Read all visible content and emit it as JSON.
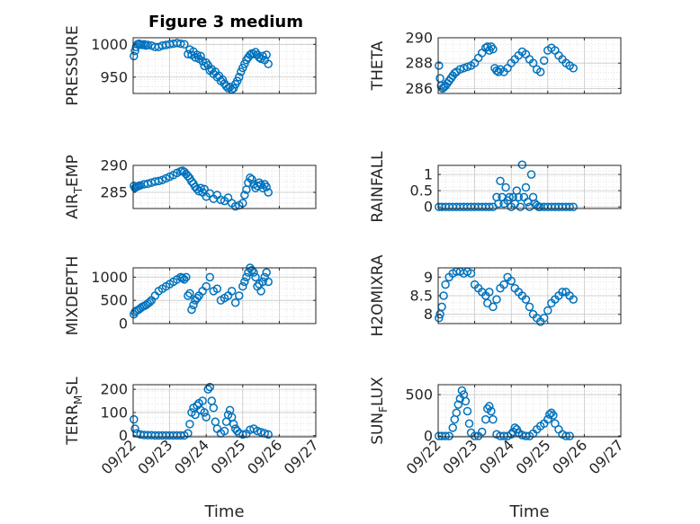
{
  "figure": {
    "title": "Figure 3 medium",
    "marker_color": "#0072bd",
    "axis_color": "#262626",
    "grid_color": "#c8c8c8",
    "x_tick_labels": [
      "09/22",
      "09/23",
      "09/24",
      "09/25",
      "09/26",
      "09/27"
    ],
    "x_label": "Time"
  },
  "chart_data": [
    {
      "type": "scatter",
      "ylabel": "PRESSURE",
      "ylim": [
        925,
        1010
      ],
      "yticks": [
        950,
        1000
      ],
      "xlim": [
        0,
        5
      ],
      "grid": true,
      "x": [
        0.02,
        0.05,
        0.08,
        0.12,
        0.16,
        0.2,
        0.25,
        0.3,
        0.35,
        0.4,
        0.5,
        0.6,
        0.7,
        0.8,
        0.9,
        1.0,
        1.1,
        1.2,
        1.3,
        1.4,
        1.5,
        1.55,
        1.6,
        1.65,
        1.7,
        1.75,
        1.8,
        1.85,
        1.9,
        1.95,
        2.0,
        2.05,
        2.1,
        2.15,
        2.2,
        2.25,
        2.3,
        2.35,
        2.4,
        2.45,
        2.5,
        2.55,
        2.6,
        2.65,
        2.7,
        2.75,
        2.8,
        2.85,
        2.9,
        2.95,
        3.0,
        3.05,
        3.1,
        3.15,
        3.2,
        3.25,
        3.3,
        3.35,
        3.4,
        3.45,
        3.5,
        3.55,
        3.6,
        3.65,
        3.7
      ],
      "y": [
        982,
        990,
        996,
        1000,
        1001,
        1000,
        999,
        1000,
        998,
        999,
        998,
        996,
        996,
        998,
        999,
        1000,
        1001,
        1002,
        1001,
        1000,
        985,
        992,
        984,
        989,
        980,
        984,
        978,
        982,
        974,
        967,
        972,
        968,
        960,
        962,
        955,
        958,
        950,
        952,
        944,
        946,
        940,
        936,
        933,
        935,
        931,
        933,
        939,
        944,
        950,
        958,
        964,
        970,
        976,
        980,
        984,
        986,
        985,
        988,
        984,
        980,
        978,
        982,
        976,
        984,
        970
      ]
    },
    {
      "type": "scatter",
      "ylabel": "THETA",
      "ylim": [
        285.6,
        290
      ],
      "yticks": [
        286,
        288,
        290
      ],
      "xlim": [
        0,
        5
      ],
      "grid": true,
      "x": [
        0.02,
        0.05,
        0.08,
        0.12,
        0.16,
        0.2,
        0.25,
        0.3,
        0.35,
        0.4,
        0.45,
        0.5,
        0.6,
        0.7,
        0.8,
        0.9,
        1.0,
        1.1,
        1.2,
        1.3,
        1.35,
        1.4,
        1.45,
        1.5,
        1.55,
        1.6,
        1.65,
        1.7,
        1.8,
        1.9,
        2.0,
        2.1,
        2.2,
        2.3,
        2.4,
        2.5,
        2.6,
        2.7,
        2.8,
        2.9,
        3.0,
        3.1,
        3.2,
        3.3,
        3.4,
        3.5,
        3.6,
        3.7
      ],
      "y": [
        287.8,
        286.8,
        286.2,
        286.0,
        286.1,
        286.2,
        286.4,
        286.6,
        286.8,
        287.0,
        287.2,
        287.3,
        287.5,
        287.6,
        287.7,
        287.8,
        288.0,
        288.4,
        288.8,
        289.2,
        289.3,
        289.0,
        289.3,
        289.1,
        287.6,
        287.4,
        287.3,
        287.5,
        287.3,
        287.6,
        288.0,
        288.3,
        288.6,
        288.9,
        288.7,
        288.3,
        288.0,
        287.5,
        287.3,
        288.2,
        289.0,
        289.2,
        289.0,
        288.6,
        288.3,
        288.0,
        287.8,
        287.6
      ]
    },
    {
      "type": "scatter",
      "ylabel": "AIR_TEMP",
      "ylabel_sub": "T",
      "ylim": [
        282,
        290
      ],
      "yticks": [
        285,
        290
      ],
      "xlim": [
        0,
        5
      ],
      "grid": true,
      "x": [
        0.02,
        0.05,
        0.08,
        0.12,
        0.16,
        0.2,
        0.3,
        0.4,
        0.5,
        0.6,
        0.7,
        0.8,
        0.9,
        1.0,
        1.1,
        1.2,
        1.3,
        1.35,
        1.4,
        1.45,
        1.5,
        1.55,
        1.6,
        1.65,
        1.7,
        1.75,
        1.8,
        1.85,
        1.9,
        1.95,
        2.0,
        2.1,
        2.2,
        2.3,
        2.4,
        2.5,
        2.6,
        2.7,
        2.8,
        2.9,
        3.0,
        3.05,
        3.1,
        3.15,
        3.2,
        3.25,
        3.3,
        3.35,
        3.4,
        3.45,
        3.5,
        3.55,
        3.6,
        3.65,
        3.7
      ],
      "y": [
        286.2,
        285.8,
        286.0,
        286.1,
        286.2,
        286.3,
        286.5,
        286.6,
        286.8,
        287.0,
        287.1,
        287.3,
        287.6,
        287.9,
        288.2,
        288.6,
        288.9,
        289.0,
        288.8,
        288.4,
        288.0,
        287.6,
        287.0,
        286.6,
        286.0,
        285.6,
        285.2,
        285.8,
        285.0,
        285.6,
        284.2,
        284.8,
        283.8,
        284.5,
        283.6,
        283.4,
        284.0,
        283.0,
        282.4,
        282.6,
        283.0,
        284.5,
        285.5,
        286.8,
        287.7,
        287.4,
        286.5,
        285.8,
        286.2,
        286.8,
        286.4,
        285.8,
        286.5,
        286.0,
        285.0
      ]
    },
    {
      "type": "scatter",
      "ylabel": "RAINFALL",
      "ylim": [
        -0.05,
        1.28
      ],
      "yticks": [
        0,
        0.5,
        1
      ],
      "xlim": [
        0,
        5
      ],
      "grid": true,
      "x": [
        0.02,
        0.1,
        0.2,
        0.3,
        0.4,
        0.5,
        0.6,
        0.7,
        0.8,
        0.9,
        1.0,
        1.1,
        1.2,
        1.3,
        1.4,
        1.5,
        1.6,
        1.65,
        1.7,
        1.75,
        1.8,
        1.85,
        1.9,
        1.95,
        2.0,
        2.05,
        2.1,
        2.15,
        2.2,
        2.25,
        2.3,
        2.35,
        2.4,
        2.45,
        2.5,
        2.55,
        2.6,
        2.65,
        2.7,
        2.75,
        2.8,
        2.9,
        3.0,
        3.1,
        3.2,
        3.3,
        3.4,
        3.5,
        3.6,
        3.7
      ],
      "y": [
        0,
        0,
        0,
        0,
        0,
        0,
        0,
        0,
        0,
        0,
        0,
        0,
        0,
        0,
        0,
        0,
        0.3,
        0.1,
        0.8,
        0.3,
        0.1,
        0.6,
        0.2,
        0.3,
        0,
        0.3,
        0.1,
        0.5,
        0.3,
        0,
        1.3,
        0.3,
        0.6,
        0.15,
        0,
        1.0,
        0.3,
        0.1,
        0.05,
        0,
        0,
        0,
        0,
        0,
        0,
        0,
        0,
        0,
        0,
        0
      ]
    },
    {
      "type": "scatter",
      "ylabel": "MIXDEPTH",
      "ylim": [
        0,
        1200
      ],
      "yticks": [
        0,
        500,
        1000
      ],
      "xlim": [
        0,
        5
      ],
      "grid": true,
      "x": [
        0.02,
        0.05,
        0.1,
        0.15,
        0.2,
        0.25,
        0.3,
        0.35,
        0.4,
        0.45,
        0.5,
        0.6,
        0.7,
        0.8,
        0.9,
        1.0,
        1.1,
        1.2,
        1.3,
        1.35,
        1.4,
        1.45,
        1.5,
        1.55,
        1.6,
        1.65,
        1.7,
        1.75,
        1.8,
        1.9,
        2.0,
        2.1,
        2.2,
        2.3,
        2.4,
        2.5,
        2.6,
        2.7,
        2.8,
        2.9,
        3.0,
        3.05,
        3.1,
        3.15,
        3.2,
        3.25,
        3.3,
        3.35,
        3.4,
        3.45,
        3.5,
        3.55,
        3.6,
        3.65,
        3.7
      ],
      "y": [
        200,
        250,
        280,
        300,
        330,
        360,
        380,
        400,
        430,
        460,
        500,
        600,
        700,
        750,
        800,
        850,
        900,
        950,
        1000,
        980,
        950,
        1000,
        600,
        650,
        300,
        400,
        500,
        550,
        600,
        700,
        800,
        1000,
        700,
        750,
        500,
        550,
        600,
        700,
        450,
        600,
        800,
        900,
        1000,
        1100,
        1200,
        1150,
        1100,
        1000,
        800,
        850,
        700,
        900,
        1000,
        1100,
        900
      ]
    },
    {
      "type": "scatter",
      "ylabel": "H2OMIXRA",
      "ylim": [
        7.75,
        9.25
      ],
      "yticks": [
        8,
        8.5,
        9
      ],
      "xlim": [
        0,
        5
      ],
      "grid": true,
      "x": [
        0.02,
        0.05,
        0.1,
        0.15,
        0.2,
        0.3,
        0.4,
        0.5,
        0.6,
        0.7,
        0.8,
        0.9,
        1.0,
        1.1,
        1.2,
        1.3,
        1.35,
        1.4,
        1.5,
        1.6,
        1.7,
        1.8,
        1.9,
        2.0,
        2.1,
        2.2,
        2.3,
        2.4,
        2.5,
        2.6,
        2.7,
        2.8,
        2.9,
        3.0,
        3.1,
        3.2,
        3.3,
        3.4,
        3.5,
        3.6,
        3.7
      ],
      "y": [
        7.9,
        8.0,
        8.2,
        8.5,
        8.8,
        9.0,
        9.1,
        9.15,
        9.15,
        9.1,
        9.15,
        9.1,
        8.8,
        8.7,
        8.6,
        8.5,
        8.3,
        8.6,
        8.2,
        8.4,
        8.7,
        8.8,
        9.0,
        8.9,
        8.7,
        8.6,
        8.5,
        8.4,
        8.2,
        8.0,
        7.9,
        7.8,
        7.9,
        8.1,
        8.3,
        8.4,
        8.5,
        8.6,
        8.6,
        8.5,
        8.4
      ]
    },
    {
      "type": "scatter",
      "ylabel": "TERR_MSL",
      "ylabel_sub": "M",
      "ylim": [
        -5,
        220
      ],
      "yticks": [
        0,
        100,
        200
      ],
      "xlim": [
        0,
        5
      ],
      "grid": true,
      "x": [
        0.02,
        0.05,
        0.1,
        0.2,
        0.3,
        0.4,
        0.5,
        0.6,
        0.7,
        0.8,
        0.9,
        1.0,
        1.1,
        1.2,
        1.3,
        1.4,
        1.5,
        1.55,
        1.6,
        1.65,
        1.7,
        1.75,
        1.8,
        1.85,
        1.9,
        1.95,
        2.0,
        2.05,
        2.1,
        2.15,
        2.2,
        2.25,
        2.3,
        2.4,
        2.5,
        2.55,
        2.6,
        2.65,
        2.7,
        2.75,
        2.8,
        2.85,
        2.9,
        3.0,
        3.1,
        3.2,
        3.3,
        3.4,
        3.5,
        3.6,
        3.7
      ],
      "y": [
        70,
        30,
        10,
        5,
        3,
        2,
        2,
        1,
        1,
        1,
        1,
        1,
        1,
        1,
        1,
        1,
        10,
        50,
        100,
        120,
        90,
        130,
        140,
        110,
        150,
        100,
        80,
        200,
        210,
        150,
        120,
        60,
        30,
        10,
        20,
        60,
        90,
        110,
        80,
        50,
        30,
        20,
        10,
        5,
        8,
        25,
        30,
        20,
        15,
        10,
        5
      ]
    },
    {
      "type": "scatter",
      "ylabel": "SUN_FLUX",
      "ylabel_sub": "F",
      "ylim": [
        -10,
        620
      ],
      "yticks": [
        0,
        500
      ],
      "xlim": [
        0,
        5
      ],
      "grid": true,
      "x": [
        0.02,
        0.1,
        0.2,
        0.3,
        0.4,
        0.45,
        0.5,
        0.55,
        0.6,
        0.65,
        0.7,
        0.75,
        0.8,
        0.85,
        0.9,
        1.0,
        1.1,
        1.2,
        1.3,
        1.35,
        1.4,
        1.45,
        1.5,
        1.6,
        1.7,
        1.8,
        1.9,
        2.0,
        2.05,
        2.1,
        2.15,
        2.2,
        2.3,
        2.4,
        2.5,
        2.6,
        2.7,
        2.8,
        2.9,
        3.0,
        3.05,
        3.1,
        3.15,
        3.2,
        3.3,
        3.4,
        3.5,
        3.6
      ],
      "y": [
        0,
        0,
        0,
        0,
        100,
        200,
        280,
        380,
        450,
        550,
        500,
        420,
        300,
        150,
        40,
        0,
        0,
        50,
        200,
        330,
        360,
        300,
        200,
        20,
        0,
        0,
        0,
        20,
        50,
        100,
        80,
        40,
        10,
        0,
        0,
        30,
        80,
        120,
        150,
        200,
        260,
        280,
        250,
        150,
        80,
        20,
        0,
        0
      ]
    }
  ]
}
